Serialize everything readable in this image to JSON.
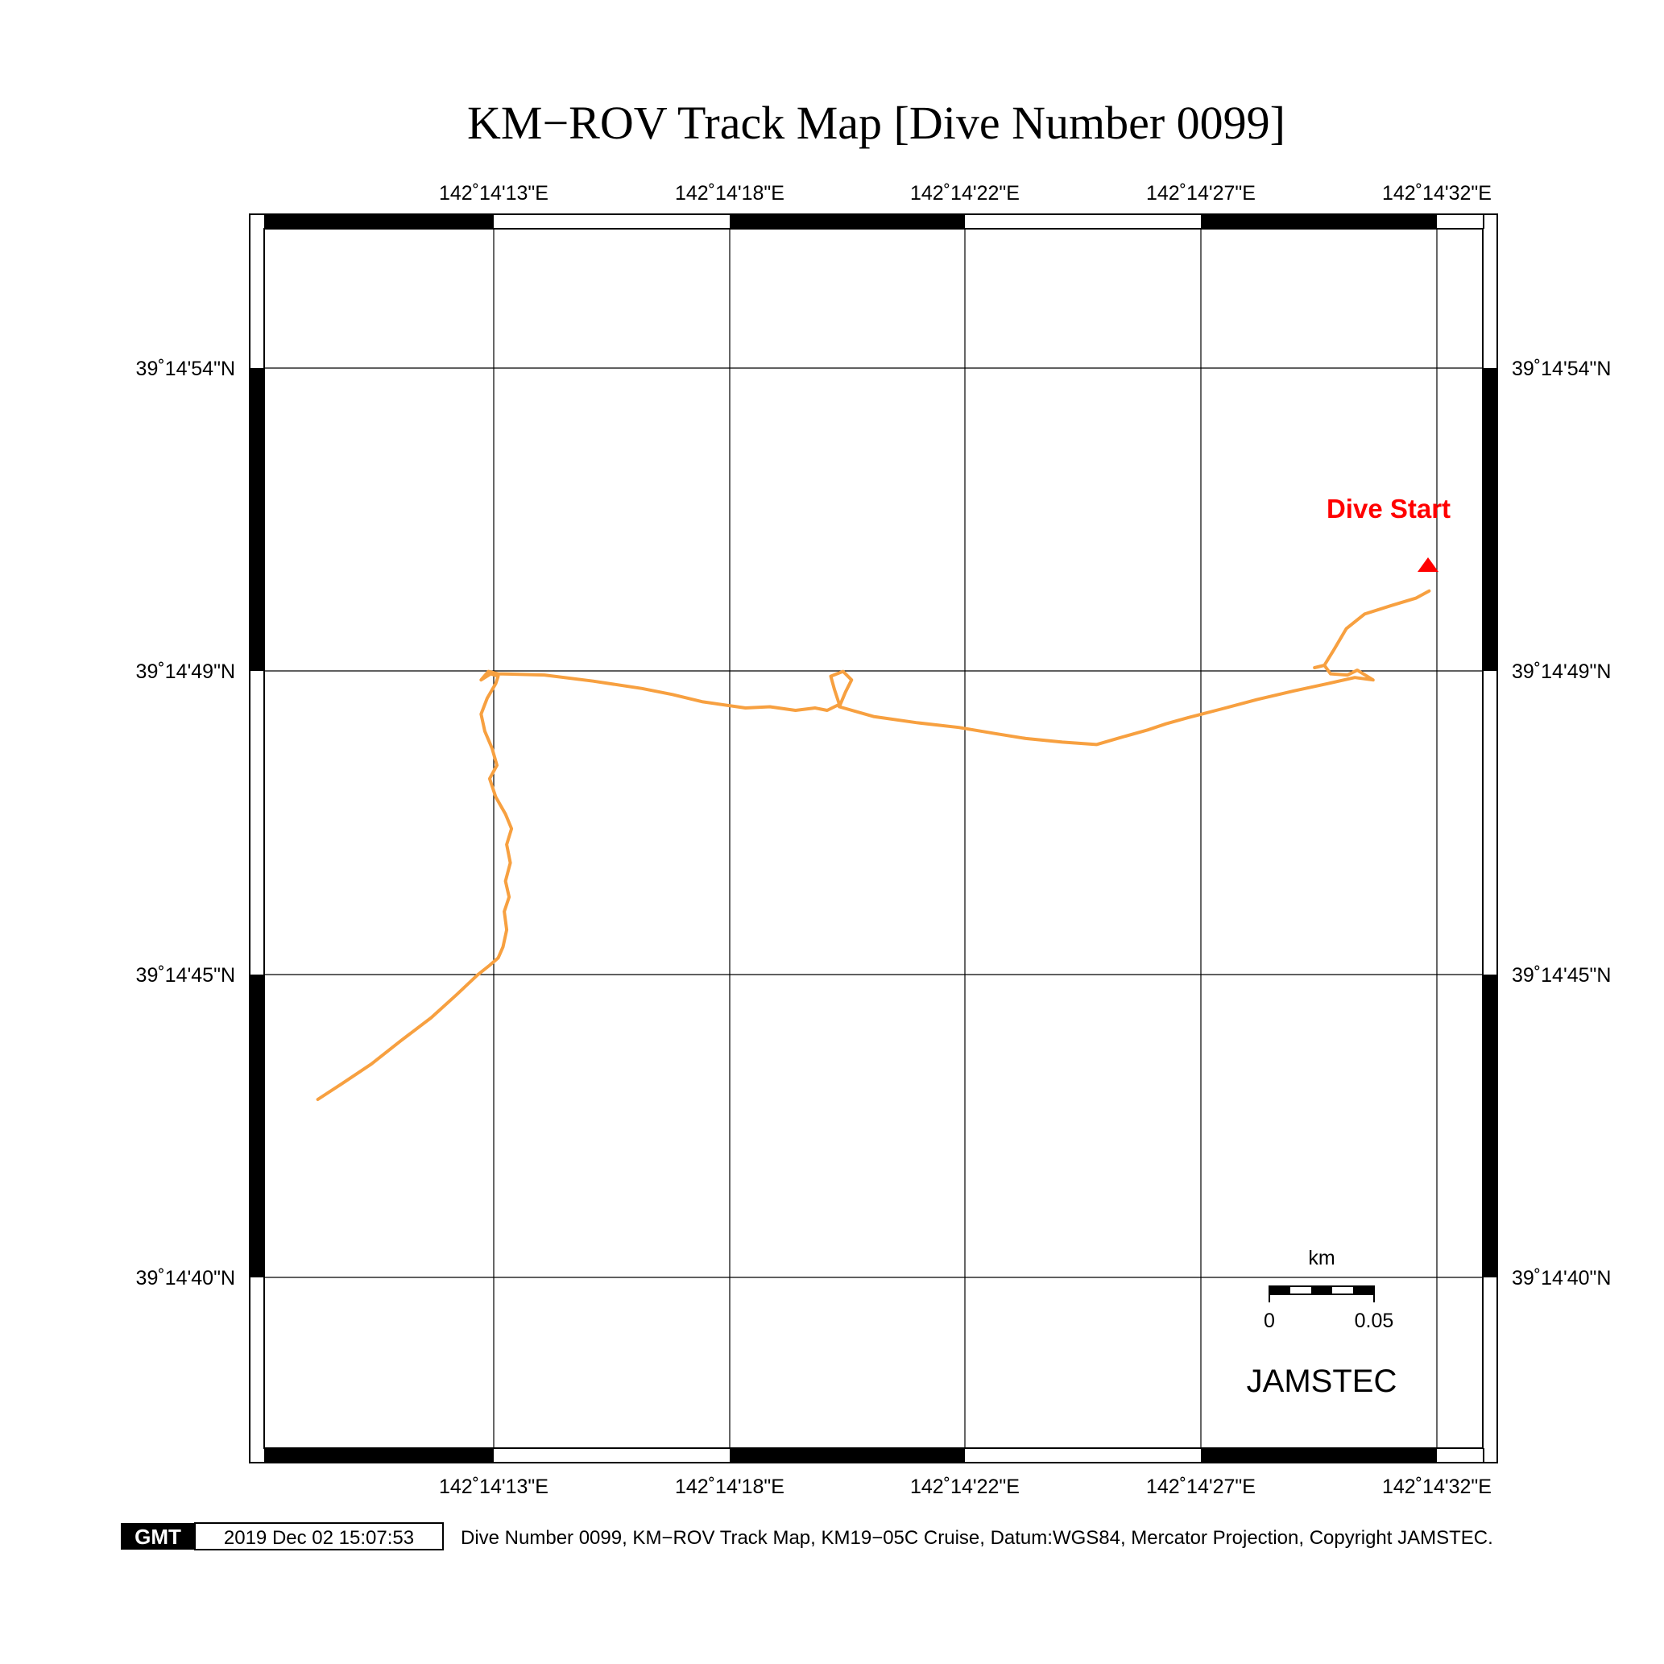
{
  "title": "KM−ROV Track Map [Dive Number 0099]",
  "x_ticks": [
    {
      "label": "142˚14'13\"E"
    },
    {
      "label": "142˚14'18\"E"
    },
    {
      "label": "142˚14'22\"E"
    },
    {
      "label": "142˚14'27\"E"
    },
    {
      "label": "142˚14'32\"E"
    }
  ],
  "y_ticks": [
    {
      "label": "39˚14'54\"N"
    },
    {
      "label": "39˚14'49\"N"
    },
    {
      "label": "39˚14'45\"N"
    },
    {
      "label": "39˚14'40\"N"
    }
  ],
  "track": {
    "color": "#f7a040",
    "points": [
      [
        0.044,
        0.714
      ],
      [
        0.064,
        0.701
      ],
      [
        0.088,
        0.685
      ],
      [
        0.112,
        0.666
      ],
      [
        0.137,
        0.647
      ],
      [
        0.158,
        0.628
      ],
      [
        0.175,
        0.612
      ],
      [
        0.185,
        0.604
      ],
      [
        0.192,
        0.598
      ],
      [
        0.196,
        0.589
      ],
      [
        0.199,
        0.575
      ],
      [
        0.197,
        0.56
      ],
      [
        0.201,
        0.548
      ],
      [
        0.198,
        0.535
      ],
      [
        0.202,
        0.52
      ],
      [
        0.199,
        0.505
      ],
      [
        0.203,
        0.492
      ],
      [
        0.198,
        0.48
      ],
      [
        0.19,
        0.466
      ],
      [
        0.185,
        0.451
      ],
      [
        0.191,
        0.44
      ],
      [
        0.187,
        0.426
      ],
      [
        0.181,
        0.412
      ],
      [
        0.178,
        0.398
      ],
      [
        0.183,
        0.385
      ],
      [
        0.19,
        0.373
      ],
      [
        0.192,
        0.367
      ],
      [
        0.186,
        0.365
      ],
      [
        0.178,
        0.37
      ],
      [
        0.184,
        0.363
      ],
      [
        0.192,
        0.365
      ],
      [
        0.23,
        0.366
      ],
      [
        0.27,
        0.371
      ],
      [
        0.31,
        0.377
      ],
      [
        0.335,
        0.382
      ],
      [
        0.36,
        0.388
      ],
      [
        0.395,
        0.393
      ],
      [
        0.415,
        0.392
      ],
      [
        0.436,
        0.395
      ],
      [
        0.452,
        0.393
      ],
      [
        0.462,
        0.395
      ],
      [
        0.472,
        0.39
      ],
      [
        0.468,
        0.378
      ],
      [
        0.465,
        0.367
      ],
      [
        0.475,
        0.363
      ],
      [
        0.482,
        0.37
      ],
      [
        0.477,
        0.38
      ],
      [
        0.472,
        0.392
      ],
      [
        0.5,
        0.4
      ],
      [
        0.535,
        0.405
      ],
      [
        0.57,
        0.409
      ],
      [
        0.6,
        0.414
      ],
      [
        0.625,
        0.418
      ],
      [
        0.655,
        0.421
      ],
      [
        0.683,
        0.423
      ],
      [
        0.7,
        0.418
      ],
      [
        0.725,
        0.411
      ],
      [
        0.74,
        0.406
      ],
      [
        0.758,
        0.401
      ],
      [
        0.785,
        0.394
      ],
      [
        0.815,
        0.386
      ],
      [
        0.845,
        0.379
      ],
      [
        0.873,
        0.373
      ],
      [
        0.895,
        0.368
      ],
      [
        0.91,
        0.37
      ],
      [
        0.897,
        0.362
      ],
      [
        0.889,
        0.366
      ],
      [
        0.875,
        0.365
      ],
      [
        0.87,
        0.358
      ],
      [
        0.862,
        0.36
      ],
      [
        0.87,
        0.358
      ],
      [
        0.878,
        0.345
      ],
      [
        0.888,
        0.328
      ],
      [
        0.903,
        0.316
      ],
      [
        0.925,
        0.309
      ],
      [
        0.945,
        0.303
      ],
      [
        0.956,
        0.297
      ]
    ]
  },
  "start_marker": {
    "label": "Dive Start",
    "color": "#ff0000"
  },
  "scale_bar": {
    "unit": "km",
    "labels": [
      "0",
      "0.05"
    ]
  },
  "org": "JAMSTEC",
  "footer": {
    "logo": "GMT",
    "timestamp": "2019 Dec 02 15:07:53",
    "caption": "Dive Number 0099, KM−ROV Track Map, KM19−05C Cruise, Datum:WGS84, Mercator Projection, Copyright JAMSTEC."
  }
}
